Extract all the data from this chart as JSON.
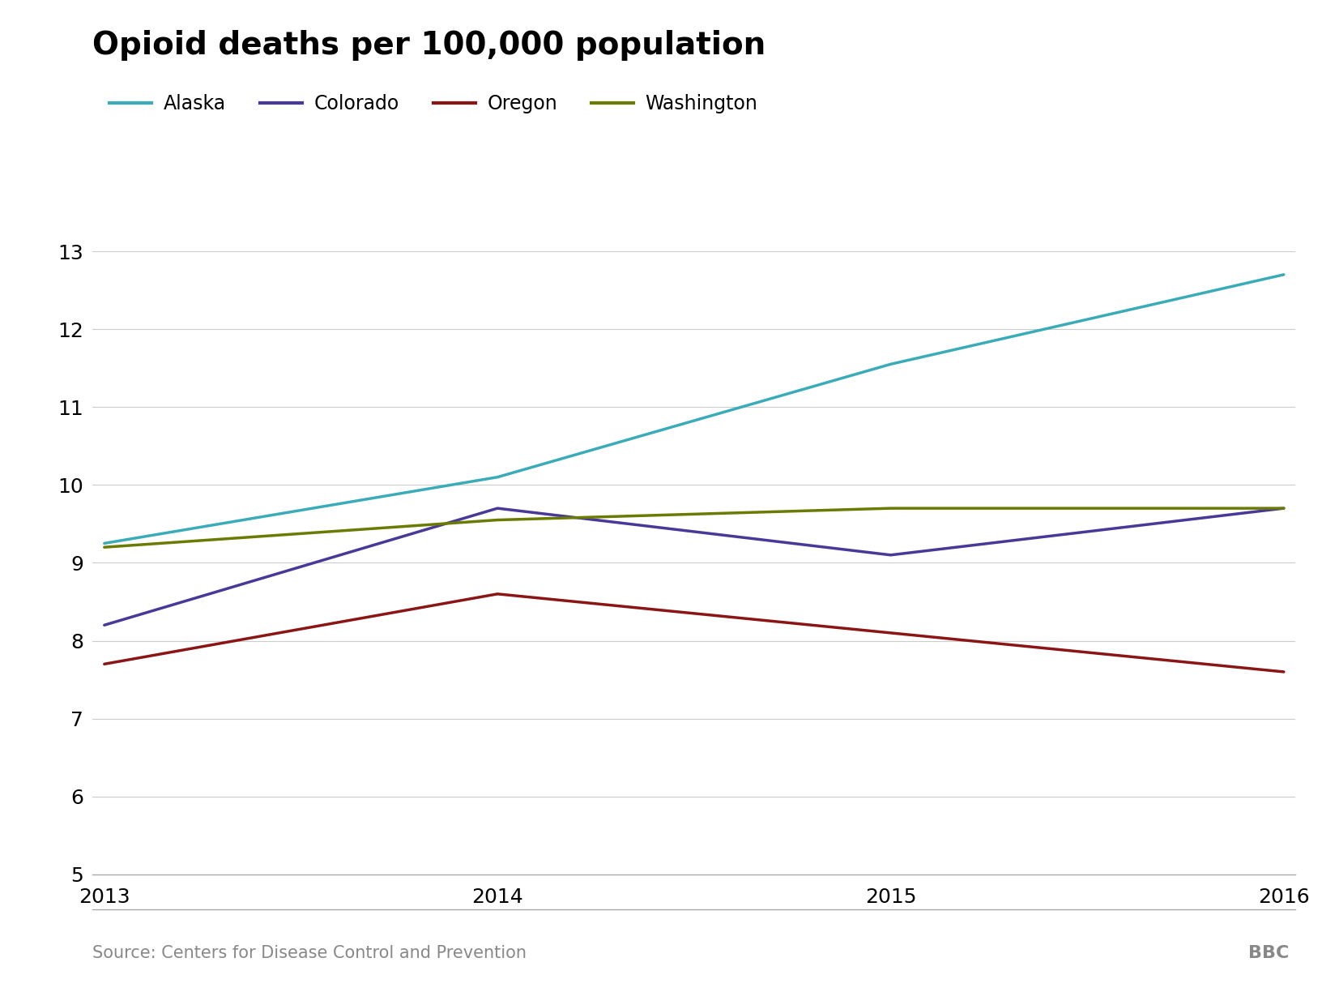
{
  "title": "Opioid deaths per 100,000 population",
  "source": "Source: Centers for Disease Control and Prevention",
  "watermark": "BBC",
  "years": [
    2013,
    2014,
    2015,
    2016
  ],
  "series": [
    {
      "label": "Alaska",
      "color": "#3aacb8",
      "values": [
        9.25,
        10.1,
        11.55,
        12.7
      ]
    },
    {
      "label": "Colorado",
      "color": "#4a3899",
      "values": [
        8.2,
        9.7,
        9.1,
        9.7
      ]
    },
    {
      "label": "Oregon",
      "color": "#8b1515",
      "values": [
        7.7,
        8.6,
        8.1,
        7.6
      ]
    },
    {
      "label": "Washington",
      "color": "#6b7a00",
      "values": [
        9.2,
        9.55,
        9.7,
        9.7
      ]
    }
  ],
  "ylim": [
    5,
    13
  ],
  "yticks": [
    5,
    6,
    7,
    8,
    9,
    10,
    11,
    12,
    13
  ],
  "xlim": [
    2013,
    2016
  ],
  "xticks": [
    2013,
    2014,
    2015,
    2016
  ],
  "background_color": "#ffffff",
  "grid_color": "#cccccc",
  "title_fontsize": 28,
  "legend_fontsize": 17,
  "tick_fontsize": 18,
  "source_fontsize": 15,
  "line_width": 2.5
}
